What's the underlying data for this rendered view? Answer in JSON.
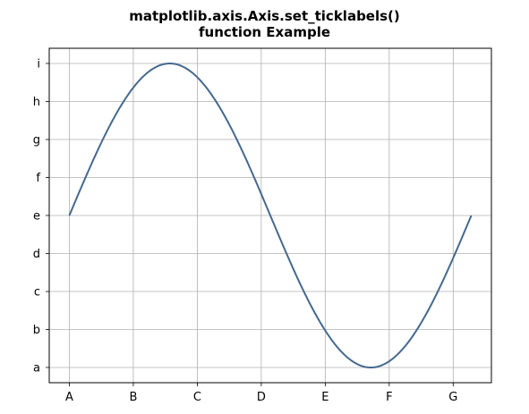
{
  "chart_data": {
    "type": "line",
    "title_lines": [
      "matplotlib.axis.Axis.set_ticklabels()",
      "function Example"
    ],
    "xlabel": "",
    "ylabel": "",
    "x_tick_values": [
      0,
      1,
      2,
      3,
      4,
      5,
      6
    ],
    "x_tick_labels": [
      "A",
      "B",
      "C",
      "D",
      "E",
      "F",
      "G"
    ],
    "y_tick_values": [
      -1.0,
      -0.75,
      -0.5,
      -0.25,
      0.0,
      0.25,
      0.5,
      0.75,
      1.0
    ],
    "y_tick_labels": [
      "a",
      "b",
      "c",
      "d",
      "e",
      "f",
      "g",
      "h",
      "i"
    ],
    "xlim": [
      -0.3142,
      6.5973
    ],
    "ylim": [
      -1.1,
      1.1
    ],
    "grid": true,
    "series": [
      {
        "function": "sin(x)",
        "x_range": [
          0,
          6.2832
        ],
        "color": "#44698f",
        "x": [
          0,
          0.3142,
          0.6283,
          0.9425,
          1.2566,
          1.5708,
          1.885,
          2.1991,
          2.5133,
          2.8274,
          3.1416,
          3.4558,
          3.7699,
          4.0841,
          4.3982,
          4.7124,
          5.0265,
          5.3407,
          5.6549,
          5.969,
          6.2832
        ],
        "y": [
          0,
          0.309,
          0.5878,
          0.809,
          0.9511,
          1.0,
          0.9511,
          0.809,
          0.5878,
          0.309,
          0,
          -0.309,
          -0.5878,
          -0.809,
          -0.9511,
          -1.0,
          -0.9511,
          -0.809,
          -0.5878,
          -0.309,
          0
        ]
      }
    ],
    "colors": {
      "line": "#44698f",
      "grid": "#b0b0b0",
      "axes": "#000000"
    }
  }
}
